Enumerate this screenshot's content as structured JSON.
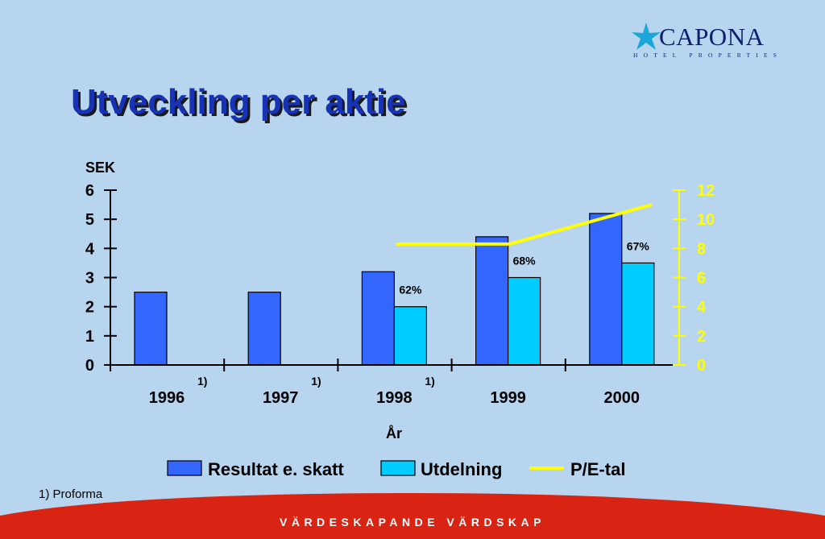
{
  "brand": {
    "name": "CAPONA",
    "tagline": "HOTEL PROPERTIES",
    "logo_icon": "star-icon",
    "color": "#0b1f6e",
    "accent": "#1aa6d8"
  },
  "slide": {
    "title": "Utveckling per aktie",
    "footnote": "1) Proforma",
    "footer": "VÄRDESKAPANDE VÄRDSKAP",
    "footer_color": "#d92414"
  },
  "chart_data": {
    "type": "bar",
    "title": "",
    "xlabel": "År",
    "ylabel": "SEK",
    "categories": [
      "1996",
      "1997",
      "1998",
      "1999",
      "2000"
    ],
    "category_notes": [
      "1)",
      "1)",
      "1)",
      "",
      ""
    ],
    "ylim": [
      0,
      6
    ],
    "y_ticks": [
      0,
      1,
      2,
      3,
      4,
      5,
      6
    ],
    "y2lim": [
      0,
      12
    ],
    "y2_ticks": [
      0,
      2,
      4,
      6,
      8,
      10,
      12
    ],
    "grid": false,
    "legend_position": "bottom",
    "series": [
      {
        "name": "Resultat e. skatt",
        "type": "bar",
        "axis": "left",
        "color": "#3366ff",
        "values": [
          2.5,
          2.5,
          3.2,
          4.4,
          5.2
        ]
      },
      {
        "name": "Utdelning",
        "type": "bar",
        "axis": "left",
        "color": "#00ccff",
        "values": [
          null,
          null,
          2.0,
          3.0,
          3.5
        ],
        "labels": [
          "",
          "",
          "62%",
          "68%",
          "67%"
        ]
      },
      {
        "name": "P/E-tal",
        "type": "line",
        "axis": "right",
        "color": "#ffff00",
        "values": [
          null,
          null,
          8.3,
          8.3,
          11.0
        ]
      }
    ]
  }
}
